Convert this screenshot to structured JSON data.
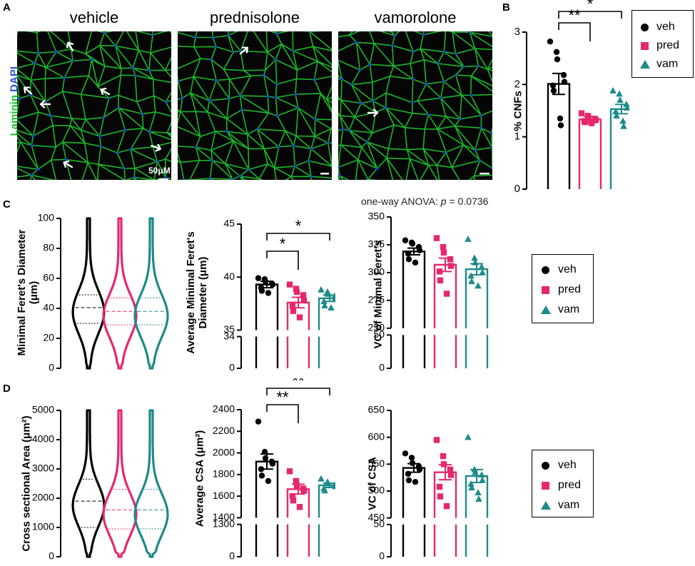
{
  "panels": {
    "A": "A",
    "B": "B",
    "C": "C",
    "D": "D"
  },
  "colors": {
    "veh": "#000000",
    "pred": "#e5286d",
    "vam": "#1e8a8a",
    "membrane": "#19c12b",
    "nuclei": "#1a3fd6"
  },
  "micrographs": {
    "titles": [
      "vehicle",
      "prednisolone",
      "vamorolone"
    ],
    "stain_laminin": "Laminin",
    "stain_dapi": "DAPI",
    "scale_bar": "50μM",
    "arrow_icon": "arrow-icon"
  },
  "legend": {
    "veh": "veh",
    "pred": "pred",
    "vam": "vam"
  },
  "anova_prefix": "one-way ANOVA: ",
  "anova_p": "p",
  "anova_rest": " = 0.0736",
  "chart_data": [
    {
      "id": "cnf",
      "panel": "B",
      "type": "bar",
      "categories": [
        "veh",
        "pred",
        "vam"
      ],
      "values": [
        2.01,
        1.33,
        1.53
      ],
      "sem": [
        0.2,
        0.06,
        0.09
      ],
      "points": [
        [
          2.82,
          2.62,
          2.48,
          2.18,
          2.05,
          1.98,
          1.88,
          1.35,
          1.22
        ],
        [
          1.45,
          1.4,
          1.35,
          1.34,
          1.32,
          1.3,
          1.28,
          1.26
        ],
        [
          1.88,
          1.82,
          1.7,
          1.62,
          1.55,
          1.48,
          1.4,
          1.3,
          1.2
        ]
      ],
      "ylabel": "% CNFs",
      "ylim": [
        0,
        3
      ],
      "yticks": [
        0,
        1,
        2,
        3
      ],
      "sig": [
        {
          "from": 0,
          "to": 1,
          "label": "**"
        },
        {
          "from": 0,
          "to": 2,
          "label": "*"
        }
      ]
    },
    {
      "id": "feret_violin",
      "panel": "C",
      "type": "violin",
      "categories": [
        "veh",
        "pred",
        "vam"
      ],
      "median": [
        40.5,
        38,
        38
      ],
      "q1": [
        30,
        29,
        29
      ],
      "q3": [
        49,
        47,
        47
      ],
      "ylabel": "Minimal Feret's Diameter (μm)",
      "ylim": [
        0,
        100
      ],
      "yticks": [
        0,
        20,
        40,
        60,
        80,
        100
      ]
    },
    {
      "id": "feret_avg",
      "panel": "C",
      "type": "bar",
      "categories": [
        "veh",
        "pred",
        "vam"
      ],
      "values": [
        39.3,
        37.6,
        38.0
      ],
      "sem": [
        0.3,
        0.5,
        0.3
      ],
      "points": [
        [
          39.9,
          39.8,
          39.6,
          39.4,
          39.3,
          39.0,
          38.7,
          38.5
        ],
        [
          39.3,
          38.9,
          38.6,
          38.3,
          37.8,
          37.3,
          36.8,
          36.2
        ],
        [
          38.8,
          38.6,
          38.4,
          38.2,
          38.0,
          37.7,
          37.3,
          37.1
        ]
      ],
      "ylabel": "Average Minimal Feret's Diameter (μm)",
      "ylim": [
        0,
        45
      ],
      "yticks": [
        0,
        34,
        35,
        40,
        45
      ],
      "axis_break": [
        34,
        35
      ],
      "sig": [
        {
          "from": 0,
          "to": 1,
          "label": "*"
        },
        {
          "from": 0,
          "to": 2,
          "label": "*"
        }
      ]
    },
    {
      "id": "feret_vc",
      "panel": "C",
      "type": "bar",
      "categories": [
        "veh",
        "pred",
        "vam"
      ],
      "values": [
        319,
        307,
        303
      ],
      "sem": [
        3,
        6,
        5
      ],
      "points": [
        [
          329,
          327,
          326,
          323,
          320,
          317,
          312,
          309
        ],
        [
          331,
          323,
          318,
          312,
          306,
          301,
          293,
          281
        ],
        [
          330,
          313,
          309,
          305,
          300,
          297,
          292,
          288
        ]
      ],
      "ylabel": "VC of Minimal Feret's",
      "ylim": [
        0,
        350
      ],
      "yticks": [
        0,
        50,
        250,
        275,
        300,
        325,
        350
      ],
      "axis_break": [
        50,
        250
      ]
    },
    {
      "id": "csa_violin",
      "panel": "D",
      "type": "violin",
      "categories": [
        "veh",
        "pred",
        "vam"
      ],
      "median": [
        1900,
        1600,
        1600
      ],
      "q1": [
        1000,
        950,
        950
      ],
      "q3": [
        2650,
        2300,
        2300
      ],
      "ylabel": "Cross sectional Area (μm²)",
      "ylim": [
        0,
        5000
      ],
      "yticks": [
        0,
        1000,
        2000,
        3000,
        4000,
        5000
      ]
    },
    {
      "id": "csa_avg",
      "panel": "D",
      "type": "bar",
      "categories": [
        "veh",
        "pred",
        "vam"
      ],
      "values": [
        1920,
        1665,
        1700
      ],
      "sem": [
        70,
        45,
        20
      ],
      "points": [
        [
          2290,
          2010,
          1950,
          1920,
          1900,
          1850,
          1790,
          1740
        ],
        [
          1830,
          1740,
          1700,
          1670,
          1650,
          1600,
          1560,
          1500
        ],
        [
          1760,
          1730,
          1715,
          1700,
          1690,
          1670,
          1650
        ]
      ],
      "ylabel": "Average CSA (μm²)",
      "ylim": [
        0,
        2400
      ],
      "yticks": [
        0,
        1300,
        1400,
        1600,
        1800,
        2000,
        2200,
        2400
      ],
      "axis_break": [
        1300,
        1400
      ],
      "sig": [
        {
          "from": 0,
          "to": 1,
          "label": "**"
        },
        {
          "from": 0,
          "to": 2,
          "label": "**"
        }
      ]
    },
    {
      "id": "csa_vc",
      "panel": "D",
      "type": "bar",
      "categories": [
        "veh",
        "pred",
        "vam"
      ],
      "values": [
        543,
        535,
        528
      ],
      "sem": [
        8,
        14,
        12
      ],
      "points": [
        [
          570,
          562,
          552,
          546,
          540,
          532,
          520,
          517
        ],
        [
          595,
          565,
          550,
          540,
          530,
          508,
          490,
          472
        ],
        [
          600,
          540,
          535,
          530,
          520,
          513,
          506,
          497,
          485
        ]
      ],
      "ylabel": "VC of CSA",
      "ylim": [
        0,
        650
      ],
      "yticks": [
        0,
        50,
        450,
        500,
        550,
        600,
        650
      ],
      "axis_break": [
        50,
        450
      ]
    }
  ]
}
